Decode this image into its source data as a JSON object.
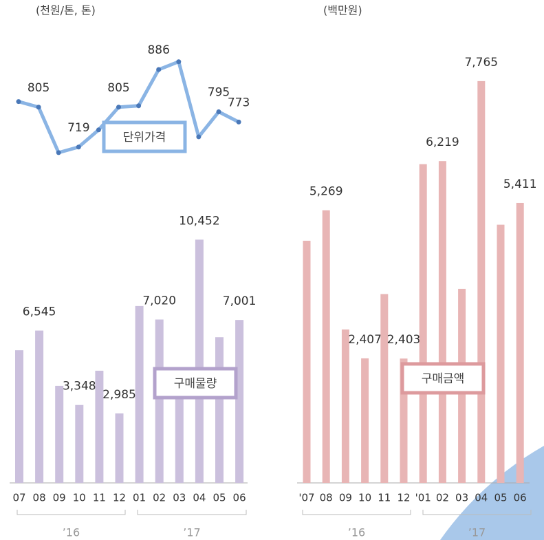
{
  "chart_data": [
    {
      "type": "line",
      "unit": "(천원/톤, 톤)",
      "categories": [
        "07",
        "08",
        "09",
        "10",
        "11",
        "12",
        "01",
        "02",
        "03",
        "04",
        "05",
        "06"
      ],
      "ylim": [
        600,
        950
      ],
      "series": [
        {
          "name": "단위가격",
          "color": "#8ab4e4",
          "marker_color": "#4a78b8",
          "values": [
            817,
            805,
            707,
            719,
            756,
            805,
            808,
            886,
            903,
            741,
            795,
            773
          ],
          "value_labels": [
            null,
            "805",
            null,
            "719",
            null,
            "805",
            null,
            "886",
            null,
            null,
            "795",
            "773"
          ]
        }
      ]
    },
    {
      "type": "bar",
      "categories": [
        "07",
        "08",
        "09",
        "10",
        "11",
        "12",
        "01",
        "02",
        "03",
        "04",
        "05",
        "06"
      ],
      "groups": [
        "’16",
        "’17"
      ],
      "ylim": [
        0,
        12000
      ],
      "series": [
        {
          "name": "구매물량",
          "color": "#cbc0dd",
          "legend_color": "#b3a2cc",
          "values": [
            5700,
            6545,
            4170,
            3348,
            4820,
            2985,
            7600,
            7020,
            4050,
            10452,
            6260,
            7001
          ],
          "value_labels": [
            null,
            "6,545",
            null,
            "3,348",
            null,
            "2,985",
            null,
            "7,020",
            null,
            "10,452",
            null,
            "7,001"
          ]
        }
      ]
    },
    {
      "type": "bar",
      "unit": "(백만원)",
      "categories": [
        "'07",
        "08",
        "09",
        "10",
        "11",
        "12",
        "'01",
        "02",
        "03",
        "04",
        "05",
        "06"
      ],
      "groups": [
        "’16",
        "’17"
      ],
      "ylim": [
        0,
        9000
      ],
      "series": [
        {
          "name": "구매금액",
          "color": "#e8b5b5",
          "legend_color": "#dd9a9d",
          "values": [
            4680,
            5269,
            2965,
            2407,
            3650,
            2403,
            6160,
            6219,
            3750,
            7765,
            4990,
            5411
          ],
          "value_labels": [
            null,
            "5,269",
            null,
            "2,407",
            null,
            "2,403",
            null,
            "6,219",
            null,
            "7,765",
            null,
            "5,411"
          ]
        }
      ]
    }
  ]
}
